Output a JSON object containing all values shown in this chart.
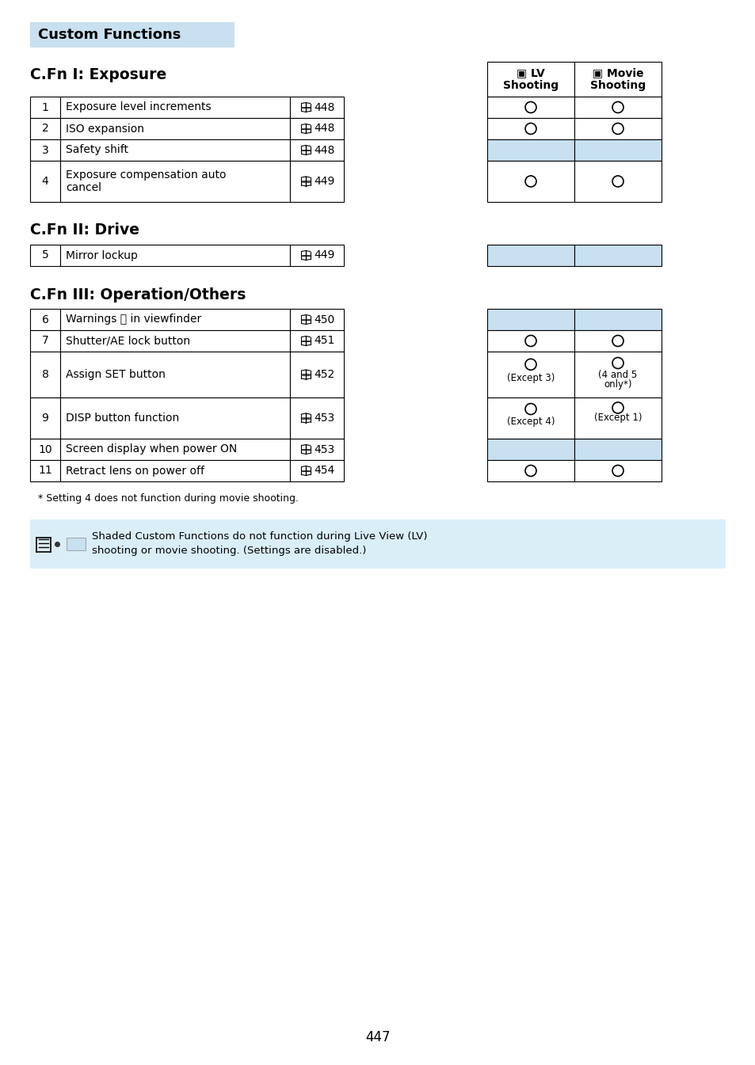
{
  "page_bg": "#ffffff",
  "light_blue": "#c8e0f0",
  "title_box_color": "#c8e0f0",
  "note_box_color": "#daeef8",
  "title": "Custom Functions",
  "section1_title": "C.Fn I: Exposure",
  "section2_title": "C.Fn II: Drive",
  "section3_title": "C.Fn III: Operation/Others",
  "fn1_rows": [
    {
      "num": "1",
      "desc": "Exposure level increments",
      "page": "448",
      "lv": "O",
      "movie": "O",
      "shaded": false,
      "tall": false
    },
    {
      "num": "2",
      "desc": "ISO expansion",
      "page": "448",
      "lv": "O",
      "movie": "O",
      "shaded": false,
      "tall": false
    },
    {
      "num": "3",
      "desc": "Safety shift",
      "page": "448",
      "lv": "",
      "movie": "",
      "shaded": true,
      "tall": false
    },
    {
      "num": "4",
      "desc": "Exposure compensation auto\ncancel",
      "page": "449",
      "lv": "O",
      "movie": "O",
      "shaded": false,
      "tall": true
    }
  ],
  "fn2_rows": [
    {
      "num": "5",
      "desc": "Mirror lockup",
      "page": "449",
      "lv": "",
      "movie": "",
      "shaded": true,
      "tall": false
    }
  ],
  "fn3_rows": [
    {
      "num": "6",
      "desc": "Warnings ⓘ in viewfinder",
      "page": "450",
      "lv": "",
      "movie": "",
      "shaded": true,
      "tall": false
    },
    {
      "num": "7",
      "desc": "Shutter/AE lock button",
      "page": "451",
      "lv": "O",
      "movie": "O",
      "shaded": false,
      "tall": false
    },
    {
      "num": "8",
      "desc": "Assign SET button",
      "page": "452",
      "lv": "O\n(Except 3)",
      "movie": "O\n(4 and 5\nonly*)",
      "shaded": false,
      "tall": true
    },
    {
      "num": "9",
      "desc": "DISP button function",
      "page": "453",
      "lv": "O\n(Except 4)",
      "movie": "O\n(Except 1)",
      "shaded": false,
      "tall": true
    },
    {
      "num": "10",
      "desc": "Screen display when power ON",
      "page": "453",
      "lv": "",
      "movie": "",
      "shaded": true,
      "tall": false
    },
    {
      "num": "11",
      "desc": "Retract lens on power off",
      "page": "454",
      "lv": "O",
      "movie": "O",
      "shaded": false,
      "tall": false
    }
  ],
  "footnote": "* Setting 4 does not function during movie shooting.",
  "note_line1": "Shaded Custom Functions do not function during Live View (LV)",
  "note_line2": "shooting or movie shooting. (Settings are disabled.)",
  "page_number": "447"
}
